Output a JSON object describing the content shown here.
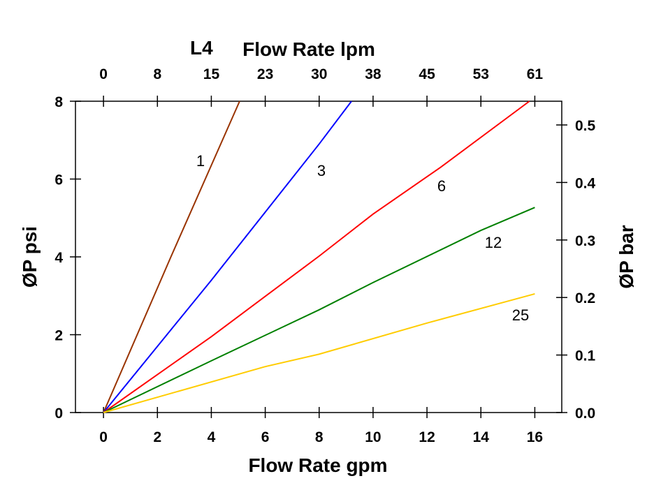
{
  "chart_data": {
    "type": "line",
    "title": "L4",
    "xlabel": "Flow Rate gpm",
    "ylabel": "ØP psi",
    "x2label": "Flow Rate lpm",
    "y2label": "ØP bar",
    "xlim": [
      -1.04,
      17
    ],
    "ylim": [
      0,
      8
    ],
    "xticks": [
      "0",
      "2",
      "4",
      "6",
      "8",
      "10",
      "12",
      "14",
      "16"
    ],
    "yticks": [
      "0",
      "2",
      "4",
      "6",
      "8"
    ],
    "x2ticks": [
      "0",
      "8",
      "15",
      "23",
      "30",
      "38",
      "45",
      "53",
      "61"
    ],
    "y2ticks": [
      "0.0",
      "0.1",
      "0.2",
      "0.3",
      "0.4",
      "0.5"
    ],
    "grid": false,
    "series": [
      {
        "name": "1",
        "color": "#993300",
        "x": [
          0,
          2.5,
          5.05
        ],
        "y": [
          0,
          4.0,
          8.0
        ]
      },
      {
        "name": "3",
        "color": "#0000ff",
        "x": [
          0,
          4,
          8,
          9.2
        ],
        "y": [
          0,
          3.4,
          6.9,
          8.0
        ]
      },
      {
        "name": "6",
        "color": "#ff0000",
        "x": [
          0,
          4,
          8,
          10,
          12.5,
          15.8
        ],
        "y": [
          0,
          1.95,
          4.02,
          5.1,
          6.3,
          8.0
        ]
      },
      {
        "name": "12",
        "color": "#008000",
        "x": [
          0,
          4,
          8,
          10,
          14,
          16
        ],
        "y": [
          0,
          1.33,
          2.64,
          3.34,
          4.68,
          5.27
        ]
      },
      {
        "name": "25",
        "color": "#ffcc00",
        "x": [
          0,
          6,
          8,
          12,
          16
        ],
        "y": [
          0,
          1.18,
          1.5,
          2.3,
          3.05
        ]
      }
    ]
  }
}
